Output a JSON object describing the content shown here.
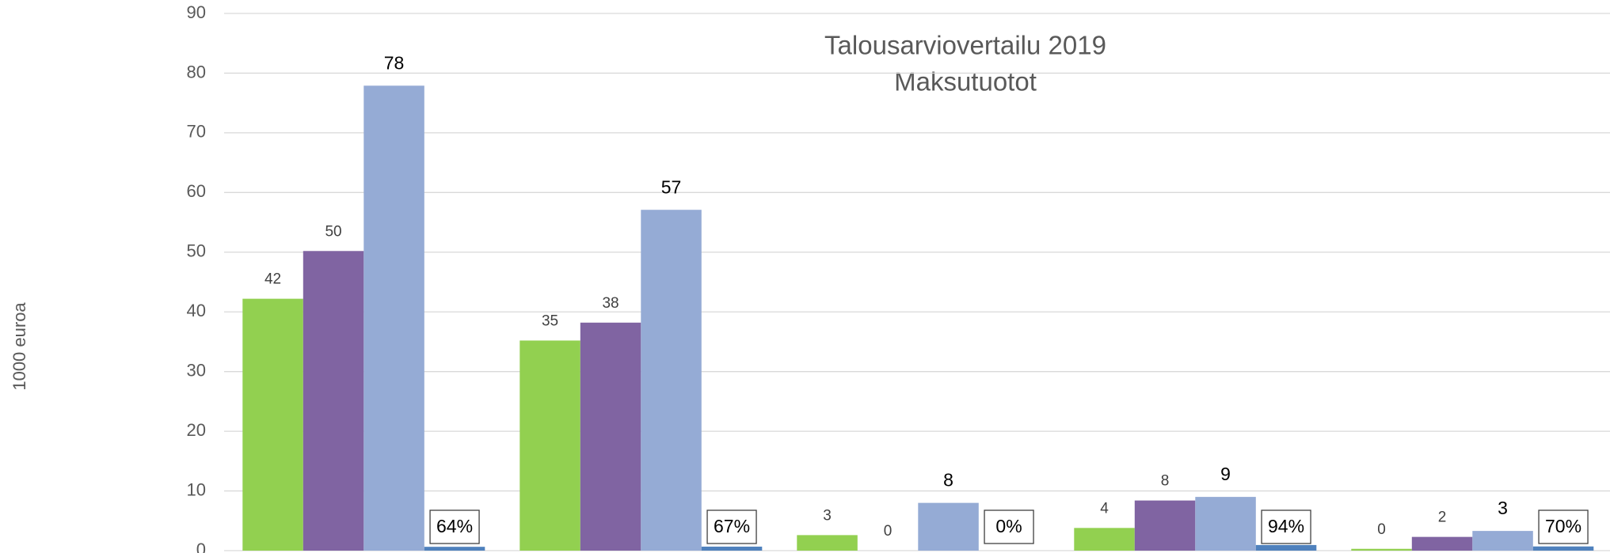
{
  "chart_data": {
    "type": "bar",
    "title": "Talousarviovertailu 2019",
    "subtitle": "Maksutuotot",
    "y_label": "1000 euroa",
    "categories": [
      null,
      null,
      null,
      null,
      null
    ],
    "series": [
      {
        "color": "#92d050",
        "values": [
          42.2,
          35.2,
          2.6,
          3.8,
          0.3
        ],
        "value_labels": [
          "42",
          "35",
          "3",
          "4",
          "0"
        ]
      },
      {
        "color": "#8064a2",
        "values": [
          50.2,
          38.2,
          0,
          8.4,
          2.3
        ],
        "value_labels": [
          "50",
          "38",
          "0",
          "8",
          "2"
        ]
      },
      {
        "color": "#95abd5",
        "values": [
          77.9,
          57.1,
          8.0,
          9.0,
          3.3
        ],
        "value_labels": [
          "78",
          "57",
          "8",
          "9",
          "3"
        ]
      },
      {
        "color": "#4f81bd",
        "values": [
          0.64,
          0.67,
          0,
          0.94,
          0.7
        ],
        "value_labels": [
          "64%",
          "67%",
          "0%",
          "94%",
          "70%"
        ]
      }
    ],
    "ylim": [
      0,
      90
    ],
    "yticks": [
      0,
      10,
      20,
      30,
      40,
      50,
      60,
      70,
      80,
      90
    ],
    "grid": true
  }
}
